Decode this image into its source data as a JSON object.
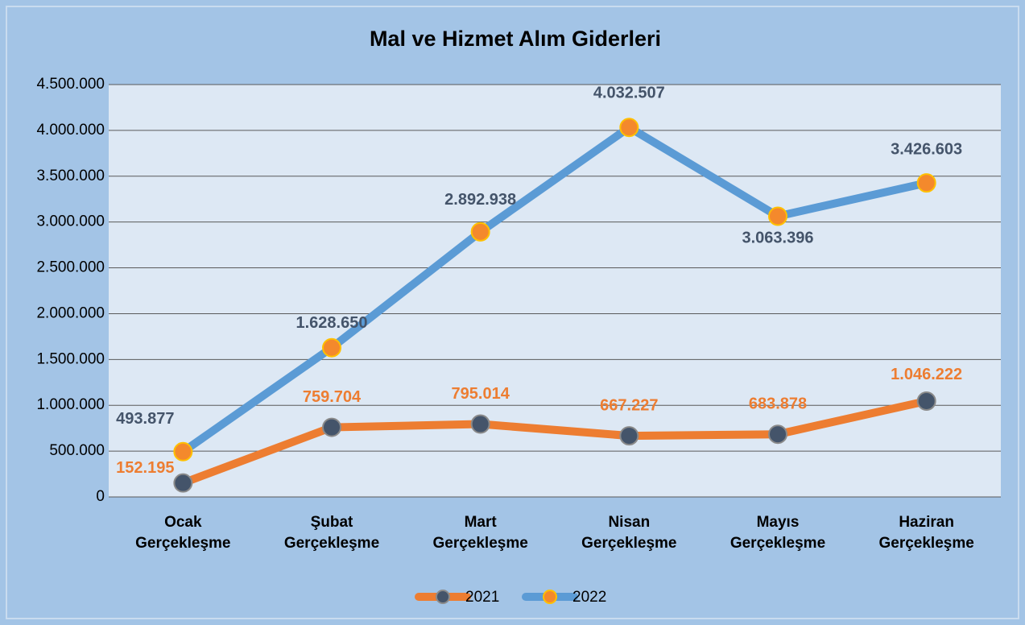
{
  "chart_data": {
    "type": "line",
    "title": "Mal ve Hizmet Alım Giderleri",
    "categories": [
      "Ocak Gerçekleşme",
      "Şubat Gerçekleşme",
      "Mart Gerçekleşme",
      "Nisan Gerçekleşme",
      "Mayıs Gerçekleşme",
      "Haziran Gerçekleşme"
    ],
    "series": [
      {
        "name": "2021",
        "color": "#ed7d31",
        "marker_color": "#44546a",
        "values": [
          152195,
          759704,
          795014,
          667227,
          683878,
          1046222
        ],
        "value_labels": [
          "152.195",
          "759.704",
          "795.014",
          "667.227",
          "683.878",
          "1.046.222"
        ]
      },
      {
        "name": "2022",
        "color": "#5b9bd5",
        "marker_color": "#f4892c",
        "values": [
          493877,
          1628650,
          2892938,
          4032507,
          3063396,
          3426603
        ],
        "value_labels": [
          "493.877",
          "1.628.650",
          "2.892.938",
          "4.032.507",
          "3.063.396",
          "3.426.603"
        ]
      }
    ],
    "ylim": [
      0,
      4500000
    ],
    "yticks": [
      0,
      {
        "value": 500000,
        "label": "500.000"
      },
      {
        "value": 1000000,
        "label": "1.000.000"
      },
      {
        "value": 1500000,
        "label": "1.500.000"
      },
      {
        "value": 2000000,
        "label": "2.000.000"
      },
      {
        "value": 2500000,
        "label": "2.500.000"
      },
      {
        "value": 3000000,
        "label": "3.000.000"
      },
      {
        "value": 3500000,
        "label": "3.500.000"
      },
      {
        "value": 4000000,
        "label": "4.000.000"
      },
      {
        "value": 4500000,
        "label": "4.500.000"
      }
    ],
    "grid": true,
    "legend": "bottom"
  }
}
